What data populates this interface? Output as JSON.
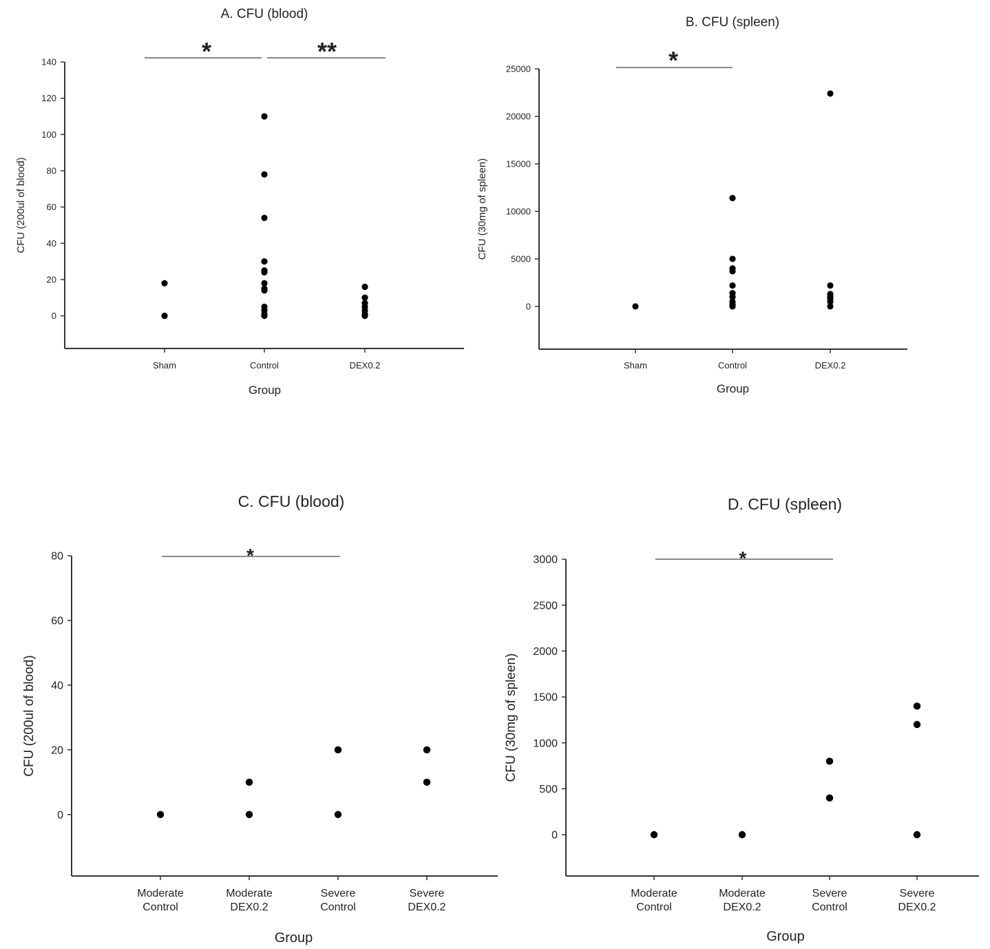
{
  "chart_data": [
    {
      "id": "A",
      "type": "scatter",
      "title": "A. CFU (blood)",
      "xlabel": "Group",
      "ylabel": "CFU (200ul of blood)",
      "categories": [
        "Sham",
        "Control",
        "DEX0.2"
      ],
      "ylim": [
        -18,
        140
      ],
      "yticks": [
        0,
        20,
        40,
        60,
        80,
        100,
        120,
        140
      ],
      "series": [
        {
          "category": "Sham",
          "values": [
            18,
            0
          ]
        },
        {
          "category": "Control",
          "values": [
            110,
            78,
            54,
            30,
            25,
            24,
            18,
            15,
            14,
            5,
            3,
            1,
            0
          ]
        },
        {
          "category": "DEX0.2",
          "values": [
            16,
            10,
            7,
            5,
            3,
            1,
            0
          ]
        }
      ],
      "significance": [
        {
          "from": "Sham",
          "to": "Control",
          "label": "*"
        },
        {
          "from": "Control",
          "to": "DEX0.2",
          "label": "**"
        }
      ]
    },
    {
      "id": "B",
      "type": "scatter",
      "title": "B. CFU (spleen)",
      "xlabel": "Group",
      "ylabel": "CFU (30mg of spleen)",
      "categories": [
        "Sham",
        "Control",
        "DEX0.2"
      ],
      "ylim": [
        -4500,
        25000
      ],
      "yticks": [
        0,
        5000,
        10000,
        15000,
        20000,
        25000
      ],
      "series": [
        {
          "category": "Sham",
          "values": [
            0
          ]
        },
        {
          "category": "Control",
          "values": [
            11400,
            5000,
            4000,
            3700,
            2200,
            1400,
            1000,
            500,
            200,
            0
          ]
        },
        {
          "category": "DEX0.2",
          "values": [
            22400,
            2200,
            1300,
            1000,
            800,
            500,
            0
          ]
        }
      ],
      "significance": [
        {
          "from": "Sham",
          "to": "Control",
          "label": "*"
        }
      ]
    },
    {
      "id": "C",
      "type": "scatter",
      "title": "C. CFU (blood)",
      "xlabel": "Group",
      "ylabel": "CFU (200ul of blood)",
      "categories": [
        [
          "Moderate",
          "Control"
        ],
        [
          "Moderate",
          "DEX0.2"
        ],
        [
          "Severe",
          "Control"
        ],
        [
          "Severe",
          "DEX0.2"
        ]
      ],
      "ylim": [
        -19,
        80
      ],
      "yticks": [
        0,
        20,
        40,
        60,
        80
      ],
      "series": [
        {
          "category": "Moderate Control",
          "values": [
            0
          ]
        },
        {
          "category": "Moderate DEX0.2",
          "values": [
            10,
            0
          ]
        },
        {
          "category": "Severe Control",
          "values": [
            20,
            0
          ]
        },
        {
          "category": "Severe DEX0.2",
          "values": [
            20,
            10
          ]
        }
      ],
      "significance": [
        {
          "from": "Moderate Control",
          "to": "Severe Control",
          "label": "*"
        }
      ]
    },
    {
      "id": "D",
      "type": "scatter",
      "title": "D. CFU (spleen)",
      "xlabel": "Group",
      "ylabel": "CFU (30mg of spleen)",
      "categories": [
        [
          "Moderate",
          "Control"
        ],
        [
          "Moderate",
          "DEX0.2"
        ],
        [
          "Severe",
          "Control"
        ],
        [
          "Severe",
          "DEX0.2"
        ]
      ],
      "ylim": [
        -450,
        3000
      ],
      "yticks": [
        0,
        500,
        1000,
        1500,
        2000,
        2500,
        3000
      ],
      "series": [
        {
          "category": "Moderate Control",
          "values": [
            0
          ]
        },
        {
          "category": "Moderate DEX0.2",
          "values": [
            0
          ]
        },
        {
          "category": "Severe Control",
          "values": [
            800,
            400
          ]
        },
        {
          "category": "Severe DEX0.2",
          "values": [
            1400,
            1200,
            0
          ]
        }
      ],
      "significance": [
        {
          "from": "Moderate Control",
          "to": "Severe Control",
          "label": "*"
        }
      ]
    }
  ]
}
